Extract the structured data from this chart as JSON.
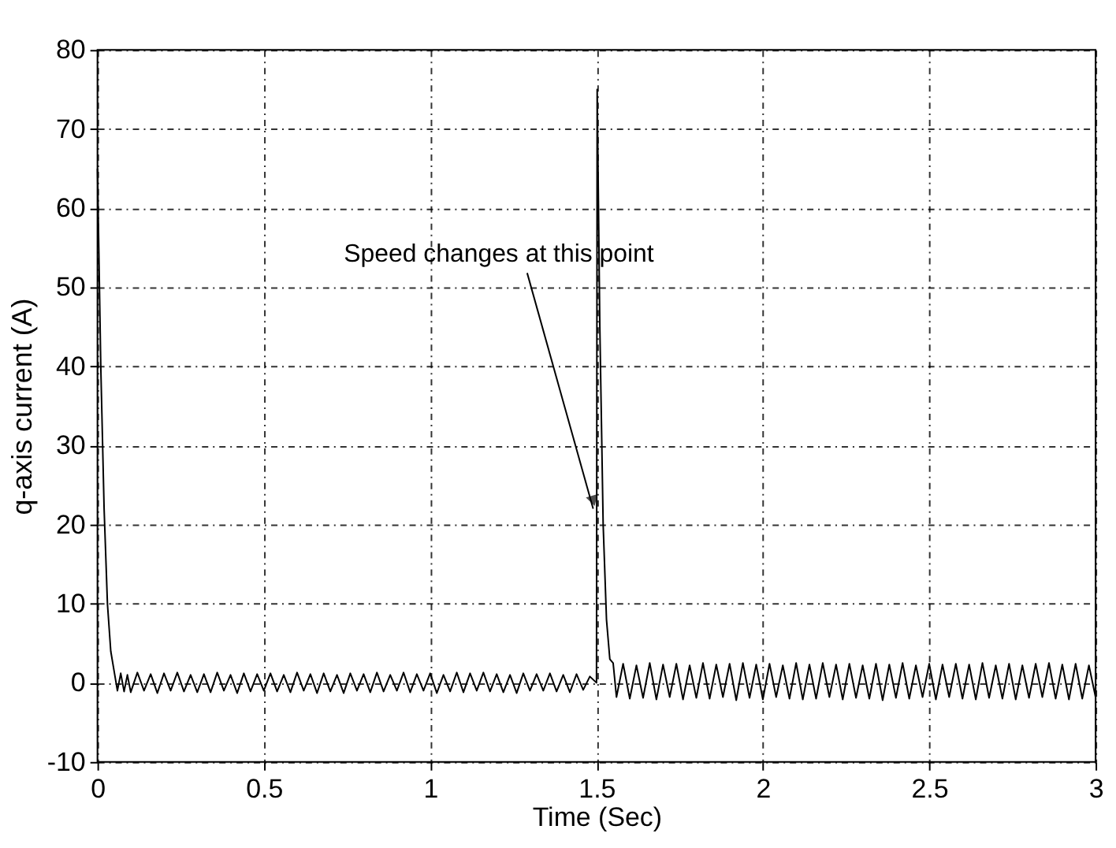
{
  "chart_data": {
    "type": "line",
    "xlabel": "Time (Sec)",
    "ylabel": "q-axis current (A)",
    "xlim": [
      0,
      3
    ],
    "xticks": [
      0,
      0.5,
      1,
      1.5,
      2,
      2.5,
      3
    ],
    "ylim": [
      -10,
      80
    ],
    "yticks": [
      -10,
      0,
      10,
      20,
      30,
      40,
      50,
      60,
      70,
      80
    ],
    "grid": true,
    "line_style": "solid",
    "marker": "none",
    "annotations": [
      {
        "text": "Speed changes at this point",
        "x": 1.49,
        "y": 22
      }
    ],
    "series": [
      {
        "color": "#000000",
        "x": [
          0,
          0.004,
          0.01,
          0.02,
          0.03,
          0.04,
          0.05,
          0.06,
          0.07,
          0.08,
          0.09,
          0.1,
          0.12,
          0.14,
          0.16,
          0.18,
          0.2,
          0.22,
          0.24,
          0.26,
          0.28,
          0.3,
          0.32,
          0.34,
          0.36,
          0.38,
          0.4,
          0.42,
          0.44,
          0.46,
          0.48,
          0.5,
          0.52,
          0.54,
          0.56,
          0.58,
          0.6,
          0.62,
          0.64,
          0.66,
          0.68,
          0.7,
          0.72,
          0.74,
          0.76,
          0.78,
          0.8,
          0.82,
          0.84,
          0.86,
          0.88,
          0.9,
          0.92,
          0.94,
          0.96,
          0.98,
          1.0,
          1.02,
          1.04,
          1.06,
          1.08,
          1.1,
          1.12,
          1.14,
          1.16,
          1.18,
          1.2,
          1.22,
          1.24,
          1.26,
          1.28,
          1.3,
          1.32,
          1.34,
          1.36,
          1.38,
          1.4,
          1.42,
          1.44,
          1.46,
          1.48,
          1.5,
          1.502,
          1.51,
          1.52,
          1.53,
          1.54,
          1.55,
          1.56,
          1.58,
          1.6,
          1.62,
          1.64,
          1.66,
          1.68,
          1.7,
          1.72,
          1.74,
          1.76,
          1.78,
          1.8,
          1.82,
          1.84,
          1.86,
          1.88,
          1.9,
          1.92,
          1.94,
          1.96,
          1.98,
          2.0,
          2.02,
          2.04,
          2.06,
          2.08,
          2.1,
          2.12,
          2.14,
          2.16,
          2.18,
          2.2,
          2.22,
          2.24,
          2.26,
          2.28,
          2.3,
          2.32,
          2.34,
          2.36,
          2.38,
          2.4,
          2.42,
          2.44,
          2.46,
          2.48,
          2.5,
          2.52,
          2.54,
          2.56,
          2.58,
          2.6,
          2.62,
          2.64,
          2.66,
          2.68,
          2.7,
          2.72,
          2.74,
          2.76,
          2.78,
          2.8,
          2.82,
          2.84,
          2.86,
          2.88,
          2.9,
          2.92,
          2.94,
          2.96,
          2.98,
          3.0
        ],
        "values": [
          65,
          55,
          40,
          22,
          10,
          4,
          1.5,
          -1,
          1.2,
          -1.1,
          1,
          -1.2,
          1.3,
          -1,
          1.1,
          -1.3,
          1.2,
          -1,
          1.3,
          -1.1,
          1,
          -1.2,
          1.1,
          -1.2,
          1.3,
          -1,
          1,
          -1.3,
          1.2,
          -1.1,
          1.1,
          -1,
          1.2,
          -1.1,
          1,
          -1.2,
          1.3,
          -1,
          1.1,
          -1.3,
          1.2,
          -1.1,
          1,
          -1.3,
          1.2,
          -1,
          1.1,
          -1.2,
          1.3,
          -1.1,
          1,
          -1,
          1.3,
          -1.2,
          1.1,
          -1,
          1.2,
          -1.3,
          1,
          -1.1,
          1.3,
          -1.2,
          1.2,
          -1,
          1.3,
          -1.1,
          1.1,
          -1.2,
          1,
          -1.3,
          1.2,
          -1,
          1.1,
          -1,
          1.2,
          -1.1,
          1,
          -1.2,
          1.1,
          -0.9,
          0.8,
          0,
          75,
          45,
          20,
          8,
          3,
          2.5,
          -1.8,
          2.4,
          -2,
          2.2,
          -1.9,
          2.5,
          -2.1,
          2.3,
          -1.8,
          2.4,
          -2.1,
          2.2,
          -1.9,
          2.5,
          -2,
          2.3,
          -1.8,
          2.4,
          -2.2,
          2.5,
          -1.9,
          2.3,
          -2.1,
          2.4,
          -1.8,
          2.2,
          -2,
          2.5,
          -2.1,
          2.3,
          -2,
          2.5,
          -1.8,
          2.3,
          -2.1,
          2.4,
          -1.9,
          2.2,
          -2,
          2.4,
          -2.2,
          2.3,
          -1.9,
          2.5,
          -2,
          2.2,
          -1.8,
          2.4,
          -2.1,
          2.3,
          -1.8,
          2.4,
          -2,
          2.3,
          -2.1,
          2.5,
          -1.9,
          2.2,
          -2,
          2.4,
          -2.1,
          2.2,
          -1.9,
          2.4,
          -1.8,
          2.5,
          -2,
          2.3,
          -2.1,
          2.4,
          -2,
          2.2,
          -1.8
        ]
      }
    ]
  }
}
